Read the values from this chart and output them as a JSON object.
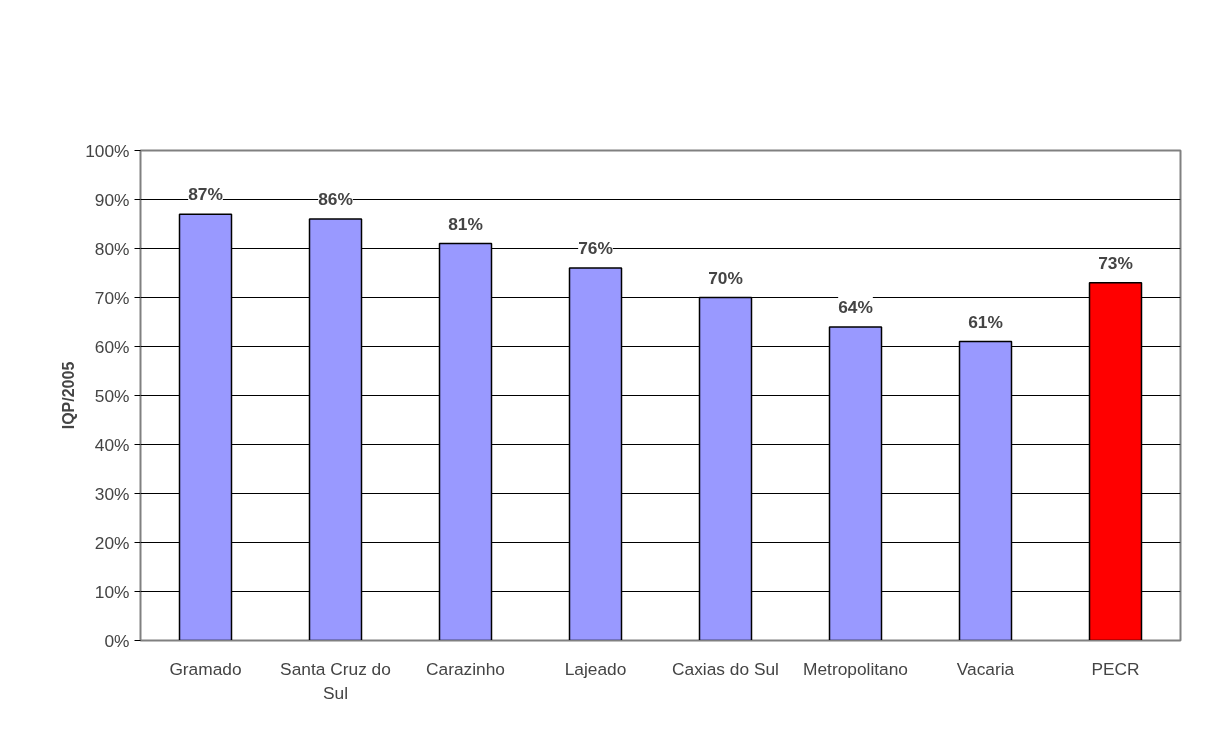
{
  "chart_data": {
    "type": "bar",
    "categories": [
      "Gramado",
      "Santa Cruz do Sul",
      "Carazinho",
      "Lajeado",
      "Caxias do Sul",
      "Metropolitano",
      "Vacaria",
      "PECR"
    ],
    "values": [
      87,
      86,
      81,
      76,
      70,
      64,
      61,
      73
    ],
    "colors": [
      "#9999ff",
      "#9999ff",
      "#9999ff",
      "#9999ff",
      "#9999ff",
      "#9999ff",
      "#9999ff",
      "#ff0000"
    ],
    "value_labels": [
      "87%",
      "86%",
      "81%",
      "76%",
      "70%",
      "64%",
      "61%",
      "73%"
    ],
    "ylabel": "IQP/2005",
    "ylim": [
      0,
      100
    ],
    "yticks": [
      {
        "value": 0,
        "label": "0%"
      },
      {
        "value": 10,
        "label": "10%"
      },
      {
        "value": 20,
        "label": "20%"
      },
      {
        "value": 30,
        "label": "30%"
      },
      {
        "value": 40,
        "label": "40%"
      },
      {
        "value": 50,
        "label": "50%"
      },
      {
        "value": 60,
        "label": "60%"
      },
      {
        "value": 70,
        "label": "70%"
      },
      {
        "value": 80,
        "label": "80%"
      },
      {
        "value": 90,
        "label": "90%"
      },
      {
        "value": 100,
        "label": "100%"
      }
    ],
    "grid": "y"
  }
}
